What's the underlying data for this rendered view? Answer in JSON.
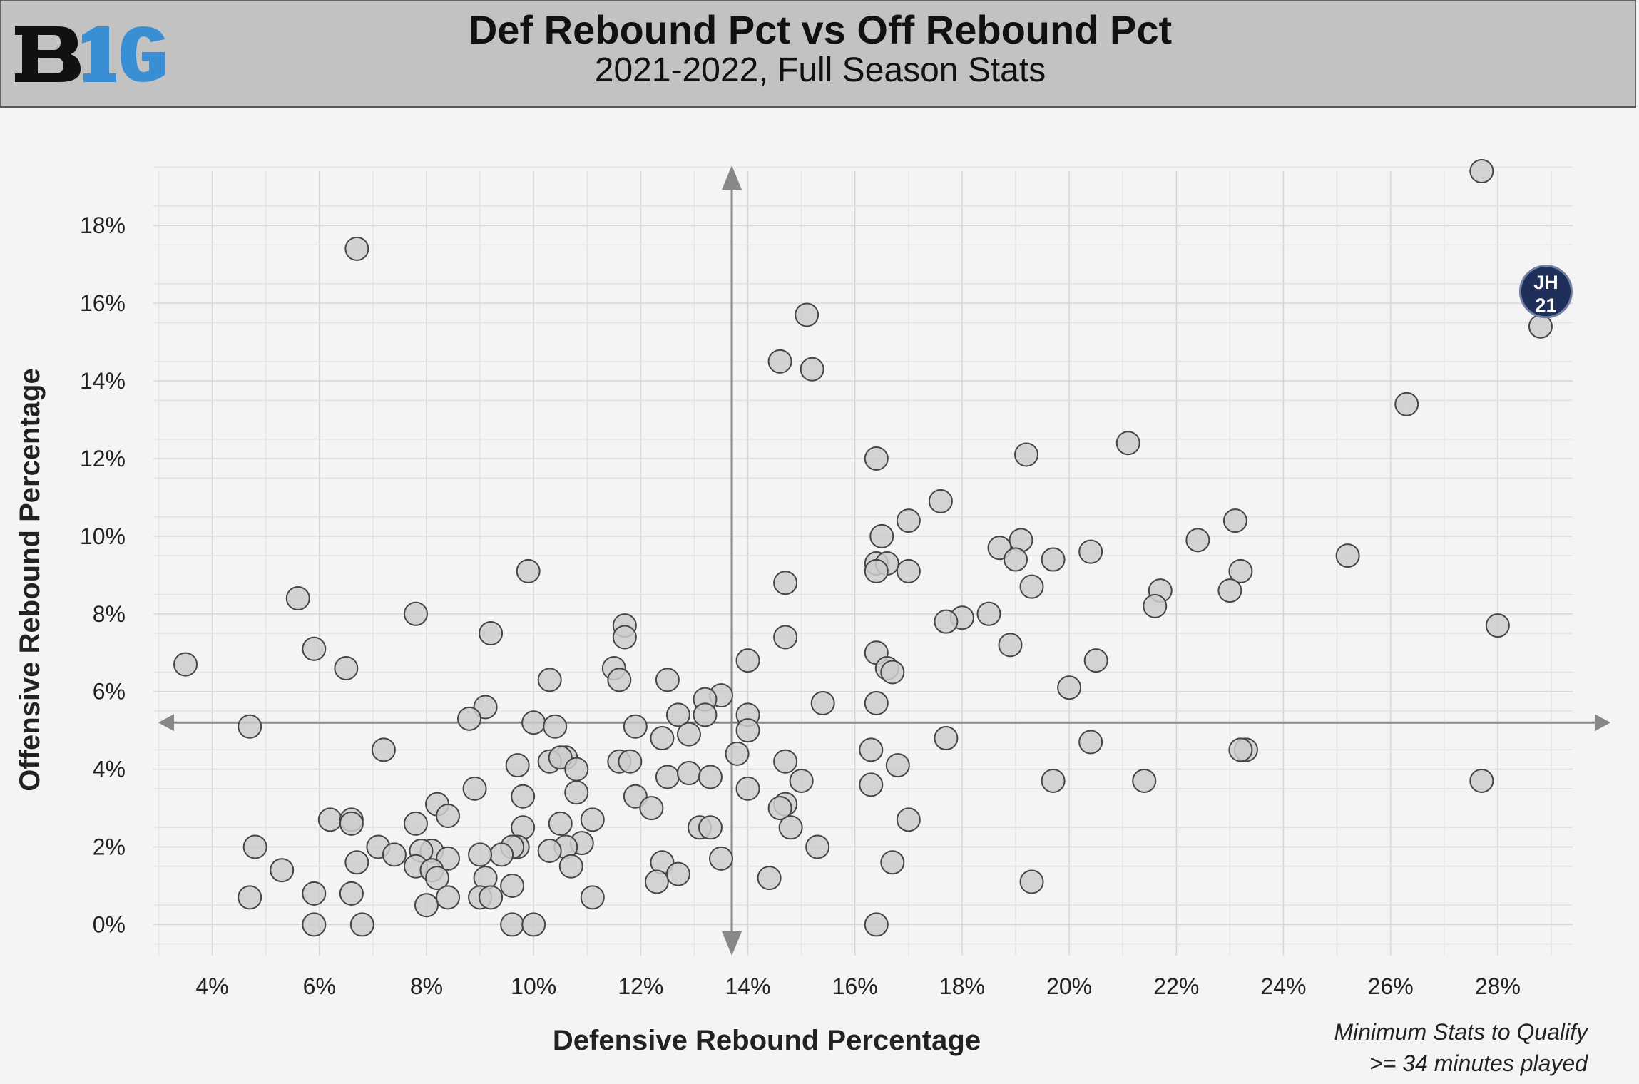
{
  "header": {
    "logo_text": "B1G",
    "title": "Def Rebound Pct vs Off Rebound Pct",
    "subtitle": "2021-2022, Full Season Stats"
  },
  "note": {
    "line1": "Minimum Stats to Qualify",
    "line2": ">= 34 minutes played"
  },
  "colors": {
    "header_bg": "#c2c2c2",
    "point_fill": "#cccccc",
    "point_stroke": "#444444",
    "highlight": "#1f2f5a",
    "reference_line": "#888888",
    "logo_dark": "#111111",
    "logo_blue": "#3a8fd4"
  },
  "chart_data": {
    "type": "scatter",
    "xlabel": "Defensive Rebound Percentage",
    "ylabel": "Offensive Rebound Percentage",
    "xlim": [
      2.9,
      29.4
    ],
    "ylim": [
      -0.8,
      19.4
    ],
    "x_ticks": [
      "4%",
      "6%",
      "8%",
      "10%",
      "12%",
      "14%",
      "16%",
      "18%",
      "20%",
      "22%",
      "24%",
      "26%",
      "28%"
    ],
    "x_tick_values": [
      4,
      6,
      8,
      10,
      12,
      14,
      16,
      18,
      20,
      22,
      24,
      26,
      28
    ],
    "y_ticks": [
      "0%",
      "2%",
      "4%",
      "6%",
      "8%",
      "10%",
      "12%",
      "14%",
      "16%",
      "18%"
    ],
    "y_tick_values": [
      0,
      2,
      4,
      6,
      8,
      10,
      12,
      14,
      16,
      18
    ],
    "grid": true,
    "reference_lines": {
      "x": 13.7,
      "y": 5.2
    },
    "highlight": {
      "label_line1": "JH",
      "label_line2": "21",
      "x": 28.9,
      "y": 16.3
    },
    "points": [
      [
        27.7,
        19.4
      ],
      [
        6.7,
        17.4
      ],
      [
        15.1,
        15.7
      ],
      [
        28.8,
        15.4
      ],
      [
        14.6,
        14.5
      ],
      [
        15.2,
        14.3
      ],
      [
        26.3,
        13.4
      ],
      [
        21.1,
        12.4
      ],
      [
        19.2,
        12.1
      ],
      [
        16.4,
        12.0
      ],
      [
        17.6,
        10.9
      ],
      [
        17.0,
        10.4
      ],
      [
        23.1,
        10.4
      ],
      [
        16.5,
        10.0
      ],
      [
        19.1,
        9.9
      ],
      [
        22.4,
        9.9
      ],
      [
        18.7,
        9.7
      ],
      [
        20.4,
        9.6
      ],
      [
        25.2,
        9.5
      ],
      [
        19.0,
        9.4
      ],
      [
        19.7,
        9.4
      ],
      [
        16.4,
        9.3
      ],
      [
        16.6,
        9.3
      ],
      [
        16.4,
        9.1
      ],
      [
        17.0,
        9.1
      ],
      [
        23.2,
        9.1
      ],
      [
        9.9,
        9.1
      ],
      [
        14.7,
        8.8
      ],
      [
        21.7,
        8.6
      ],
      [
        19.3,
        8.7
      ],
      [
        23.0,
        8.6
      ],
      [
        5.6,
        8.4
      ],
      [
        21.6,
        8.2
      ],
      [
        7.8,
        8.0
      ],
      [
        18.0,
        7.9
      ],
      [
        18.5,
        8.0
      ],
      [
        17.7,
        7.8
      ],
      [
        11.7,
        7.7
      ],
      [
        28.0,
        7.7
      ],
      [
        9.2,
        7.5
      ],
      [
        11.7,
        7.4
      ],
      [
        14.7,
        7.4
      ],
      [
        18.9,
        7.2
      ],
      [
        5.9,
        7.1
      ],
      [
        16.4,
        7.0
      ],
      [
        14.0,
        6.8
      ],
      [
        20.5,
        6.8
      ],
      [
        3.5,
        6.7
      ],
      [
        6.5,
        6.6
      ],
      [
        16.6,
        6.6
      ],
      [
        16.7,
        6.5
      ],
      [
        11.5,
        6.6
      ],
      [
        11.6,
        6.3
      ],
      [
        12.5,
        6.3
      ],
      [
        10.3,
        6.3
      ],
      [
        20.0,
        6.1
      ],
      [
        13.5,
        5.9
      ],
      [
        13.2,
        5.8
      ],
      [
        15.4,
        5.7
      ],
      [
        16.4,
        5.7
      ],
      [
        9.1,
        5.6
      ],
      [
        12.7,
        5.4
      ],
      [
        13.2,
        5.4
      ],
      [
        14.0,
        5.4
      ],
      [
        8.8,
        5.3
      ],
      [
        10.0,
        5.2
      ],
      [
        10.4,
        5.1
      ],
      [
        11.9,
        5.1
      ],
      [
        4.7,
        5.1
      ],
      [
        14.0,
        5.0
      ],
      [
        12.9,
        4.9
      ],
      [
        12.4,
        4.8
      ],
      [
        17.7,
        4.8
      ],
      [
        20.4,
        4.7
      ],
      [
        23.3,
        4.5
      ],
      [
        23.2,
        4.5
      ],
      [
        7.2,
        4.5
      ],
      [
        16.3,
        4.5
      ],
      [
        13.8,
        4.4
      ],
      [
        10.6,
        4.3
      ],
      [
        10.3,
        4.2
      ],
      [
        10.5,
        4.3
      ],
      [
        11.6,
        4.2
      ],
      [
        11.8,
        4.2
      ],
      [
        14.7,
        4.2
      ],
      [
        16.8,
        4.1
      ],
      [
        9.7,
        4.1
      ],
      [
        10.8,
        4.0
      ],
      [
        12.5,
        3.8
      ],
      [
        12.9,
        3.9
      ],
      [
        13.3,
        3.8
      ],
      [
        15.0,
        3.7
      ],
      [
        19.7,
        3.7
      ],
      [
        21.4,
        3.7
      ],
      [
        27.7,
        3.7
      ],
      [
        16.3,
        3.6
      ],
      [
        8.9,
        3.5
      ],
      [
        14.0,
        3.5
      ],
      [
        9.8,
        3.3
      ],
      [
        10.8,
        3.4
      ],
      [
        11.9,
        3.3
      ],
      [
        14.7,
        3.1
      ],
      [
        14.6,
        3.0
      ],
      [
        8.2,
        3.1
      ],
      [
        12.2,
        3.0
      ],
      [
        8.4,
        2.8
      ],
      [
        6.2,
        2.7
      ],
      [
        6.6,
        2.7
      ],
      [
        6.6,
        2.6
      ],
      [
        7.8,
        2.6
      ],
      [
        10.5,
        2.6
      ],
      [
        11.1,
        2.7
      ],
      [
        17.0,
        2.7
      ],
      [
        9.8,
        2.5
      ],
      [
        13.1,
        2.5
      ],
      [
        13.3,
        2.5
      ],
      [
        14.8,
        2.5
      ],
      [
        10.9,
        2.1
      ],
      [
        10.6,
        2.0
      ],
      [
        9.7,
        2.0
      ],
      [
        9.6,
        2.0
      ],
      [
        7.1,
        2.0
      ],
      [
        15.3,
        2.0
      ],
      [
        4.8,
        2.0
      ],
      [
        7.4,
        1.8
      ],
      [
        9.4,
        1.8
      ],
      [
        8.1,
        1.9
      ],
      [
        7.9,
        1.9
      ],
      [
        9.0,
        1.8
      ],
      [
        10.3,
        1.9
      ],
      [
        8.4,
        1.7
      ],
      [
        6.7,
        1.6
      ],
      [
        7.8,
        1.5
      ],
      [
        10.7,
        1.5
      ],
      [
        13.5,
        1.7
      ],
      [
        12.4,
        1.6
      ],
      [
        16.7,
        1.6
      ],
      [
        5.3,
        1.4
      ],
      [
        8.1,
        1.4
      ],
      [
        12.7,
        1.3
      ],
      [
        14.4,
        1.2
      ],
      [
        12.3,
        1.1
      ],
      [
        8.2,
        1.2
      ],
      [
        9.1,
        1.2
      ],
      [
        19.3,
        1.1
      ],
      [
        9.6,
        1.0
      ],
      [
        5.9,
        0.8
      ],
      [
        6.6,
        0.8
      ],
      [
        4.7,
        0.7
      ],
      [
        8.4,
        0.7
      ],
      [
        9.0,
        0.7
      ],
      [
        9.2,
        0.7
      ],
      [
        11.1,
        0.7
      ],
      [
        8.0,
        0.5
      ],
      [
        5.9,
        0.0
      ],
      [
        6.8,
        0.0
      ],
      [
        9.6,
        0.0
      ],
      [
        10.0,
        0.0
      ],
      [
        16.4,
        0.0
      ]
    ]
  }
}
